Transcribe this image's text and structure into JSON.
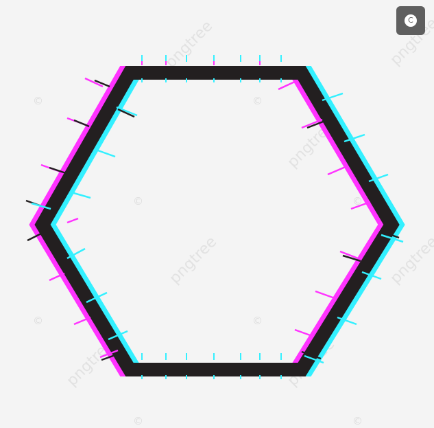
{
  "watermark": {
    "brand_text": "pngtree",
    "copyright_symbol": "©"
  },
  "badge": {
    "symbol": "C"
  },
  "colors": {
    "background": "#f4f4f4",
    "frame": "#231f20",
    "glitch_magenta": "#ff33ff",
    "glitch_cyan": "#33f0ff",
    "badge": "#5f5f5f"
  },
  "shape": "hexagon-glitch-frame"
}
